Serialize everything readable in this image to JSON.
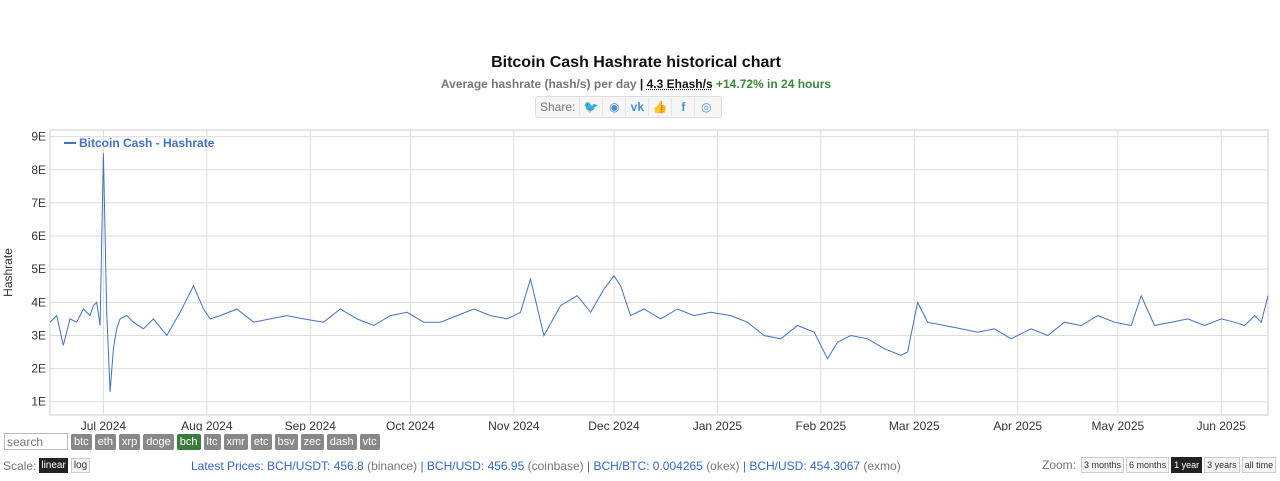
{
  "header": {
    "title": "Bitcoin Cash Hashrate historical chart",
    "subtitle": "Average hashrate (hash/s) per day",
    "separator": "|",
    "current_value": "4.3 Ehash/s",
    "change": "+14.72% in 24 hours"
  },
  "share": {
    "label": "Share:",
    "icons": [
      "twitter-icon",
      "reddit-icon",
      "vk-icon",
      "like-icon",
      "facebook-icon",
      "weibo-icon"
    ]
  },
  "chart_data": {
    "type": "line",
    "title": "Bitcoin Cash Hashrate historical chart",
    "ylabel": "Hashrate",
    "xlabel": "",
    "y_ticks": [
      "1E",
      "2E",
      "3E",
      "4E",
      "5E",
      "6E",
      "7E",
      "8E",
      "9E"
    ],
    "ylim": [
      0.6,
      9.2
    ],
    "x_ticks": [
      "Jul 2024",
      "Aug 2024",
      "Sep 2024",
      "Oct 2024",
      "Nov 2024",
      "Dec 2024",
      "Jan 2025",
      "Feb 2025",
      "Mar 2025",
      "Apr 2025",
      "May 2025",
      "Jun 2025"
    ],
    "xlim": [
      "2024-06-15",
      "2025-06-15"
    ],
    "grid": true,
    "legend_position": "top-left",
    "series": [
      {
        "name": "Bitcoin Cash - Hashrate",
        "color": "#4472c4",
        "x": [
          "2024-06-15",
          "2024-06-17",
          "2024-06-19",
          "2024-06-21",
          "2024-06-23",
          "2024-06-25",
          "2024-06-27",
          "2024-06-28",
          "2024-06-29",
          "2024-06-30",
          "2024-07-01",
          "2024-07-02",
          "2024-07-03",
          "2024-07-04",
          "2024-07-05",
          "2024-07-06",
          "2024-07-08",
          "2024-07-10",
          "2024-07-13",
          "2024-07-16",
          "2024-07-20",
          "2024-07-24",
          "2024-07-28",
          "2024-07-31",
          "2024-08-02",
          "2024-08-05",
          "2024-08-10",
          "2024-08-15",
          "2024-08-20",
          "2024-08-25",
          "2024-08-30",
          "2024-09-05",
          "2024-09-10",
          "2024-09-15",
          "2024-09-20",
          "2024-09-25",
          "2024-09-30",
          "2024-10-05",
          "2024-10-10",
          "2024-10-15",
          "2024-10-20",
          "2024-10-25",
          "2024-10-30",
          "2024-11-03",
          "2024-11-06",
          "2024-11-10",
          "2024-11-15",
          "2024-11-20",
          "2024-11-24",
          "2024-11-28",
          "2024-12-01",
          "2024-12-03",
          "2024-12-06",
          "2024-12-10",
          "2024-12-15",
          "2024-12-20",
          "2024-12-25",
          "2024-12-30",
          "2025-01-05",
          "2025-01-10",
          "2025-01-15",
          "2025-01-20",
          "2025-01-25",
          "2025-01-30",
          "2025-02-03",
          "2025-02-06",
          "2025-02-10",
          "2025-02-15",
          "2025-02-20",
          "2025-02-25",
          "2025-02-27",
          "2025-03-02",
          "2025-03-05",
          "2025-03-10",
          "2025-03-15",
          "2025-03-20",
          "2025-03-25",
          "2025-03-30",
          "2025-04-05",
          "2025-04-10",
          "2025-04-15",
          "2025-04-20",
          "2025-04-25",
          "2025-04-30",
          "2025-05-05",
          "2025-05-08",
          "2025-05-12",
          "2025-05-17",
          "2025-05-22",
          "2025-05-27",
          "2025-06-01",
          "2025-06-05",
          "2025-06-08",
          "2025-06-11",
          "2025-06-13",
          "2025-06-15"
        ],
        "y": [
          3.4,
          3.6,
          2.7,
          3.5,
          3.4,
          3.8,
          3.6,
          3.9,
          4.0,
          3.3,
          8.5,
          3.7,
          1.3,
          2.6,
          3.2,
          3.5,
          3.6,
          3.4,
          3.2,
          3.5,
          3.0,
          3.7,
          4.5,
          3.8,
          3.5,
          3.6,
          3.8,
          3.4,
          3.5,
          3.6,
          3.5,
          3.4,
          3.8,
          3.5,
          3.3,
          3.6,
          3.7,
          3.4,
          3.4,
          3.6,
          3.8,
          3.6,
          3.5,
          3.7,
          4.7,
          3.0,
          3.9,
          4.2,
          3.7,
          4.4,
          4.8,
          4.5,
          3.6,
          3.8,
          3.5,
          3.8,
          3.6,
          3.7,
          3.6,
          3.4,
          3.0,
          2.9,
          3.3,
          3.1,
          2.3,
          2.8,
          3.0,
          2.9,
          2.6,
          2.4,
          2.5,
          4.0,
          3.4,
          3.3,
          3.2,
          3.1,
          3.2,
          2.9,
          3.2,
          3.0,
          3.4,
          3.3,
          3.6,
          3.4,
          3.3,
          4.2,
          3.3,
          3.4,
          3.5,
          3.3,
          3.5,
          3.4,
          3.3,
          3.6,
          3.4,
          4.2
        ]
      }
    ]
  },
  "controls": {
    "search_placeholder": "search",
    "coins": [
      "btc",
      "eth",
      "xrp",
      "doge",
      "bch",
      "ltc",
      "xmr",
      "etc",
      "bsv",
      "zec",
      "dash",
      "vtc"
    ],
    "active_coin": "bch",
    "scale_label": "Scale:",
    "scale_options": [
      "linear",
      "log"
    ],
    "active_scale": "linear",
    "prices_label": "Latest Prices:",
    "prices": [
      {
        "pair": "BCH/USDT:",
        "value": "456.8",
        "source": "(binance)"
      },
      {
        "pair": "BCH/USD:",
        "value": "456.95",
        "source": "(coinbase)"
      },
      {
        "pair": "BCH/BTC:",
        "value": "0.004265",
        "source": "(okex)"
      },
      {
        "pair": "BCH/USD:",
        "value": "454.3067",
        "source": "(exmo)"
      }
    ],
    "zoom_label": "Zoom:",
    "zoom_options": [
      "3 months",
      "6 months",
      "1 year",
      "3 years",
      "all time"
    ],
    "active_zoom": "1 year"
  }
}
